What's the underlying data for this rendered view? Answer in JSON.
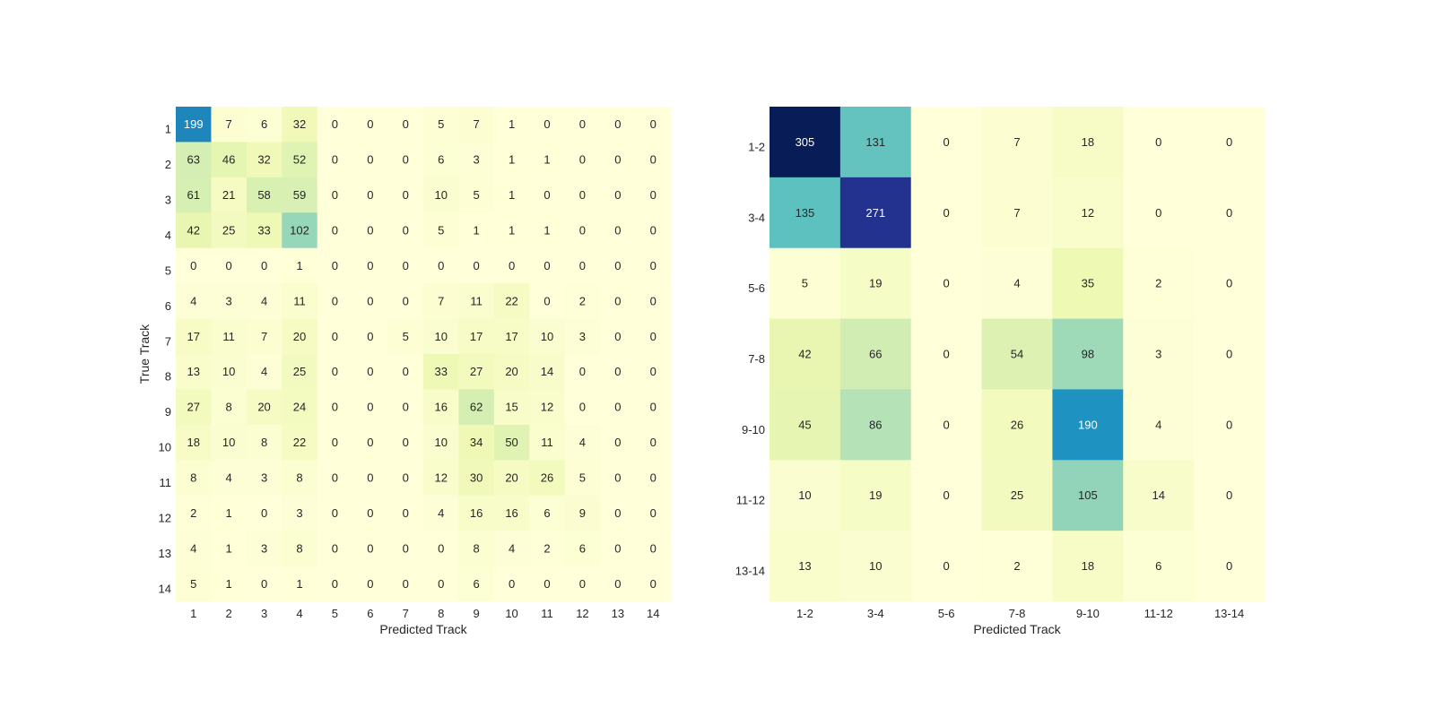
{
  "chart_data": [
    {
      "type": "heatmap",
      "title": "",
      "xlabel": "Predicted Track",
      "ylabel": "True Track",
      "colormap": "YlGnBu",
      "color_range": [
        0,
        305
      ],
      "x_categories": [
        "1",
        "2",
        "3",
        "4",
        "5",
        "6",
        "7",
        "8",
        "9",
        "10",
        "11",
        "12",
        "13",
        "14"
      ],
      "y_categories": [
        "1",
        "2",
        "3",
        "4",
        "5",
        "6",
        "7",
        "8",
        "9",
        "10",
        "11",
        "12",
        "13",
        "14"
      ],
      "values": [
        [
          199,
          7,
          6,
          32,
          0,
          0,
          0,
          5,
          7,
          1,
          0,
          0,
          0,
          0
        ],
        [
          63,
          46,
          32,
          52,
          0,
          0,
          0,
          6,
          3,
          1,
          1,
          0,
          0,
          0
        ],
        [
          61,
          21,
          58,
          59,
          0,
          0,
          0,
          10,
          5,
          1,
          0,
          0,
          0,
          0
        ],
        [
          42,
          25,
          33,
          102,
          0,
          0,
          0,
          5,
          1,
          1,
          1,
          0,
          0,
          0
        ],
        [
          0,
          0,
          0,
          1,
          0,
          0,
          0,
          0,
          0,
          0,
          0,
          0,
          0,
          0
        ],
        [
          4,
          3,
          4,
          11,
          0,
          0,
          0,
          7,
          11,
          22,
          0,
          2,
          0,
          0
        ],
        [
          17,
          11,
          7,
          20,
          0,
          0,
          5,
          10,
          17,
          17,
          10,
          3,
          0,
          0
        ],
        [
          13,
          10,
          4,
          25,
          0,
          0,
          0,
          33,
          27,
          20,
          14,
          0,
          0,
          0
        ],
        [
          27,
          8,
          20,
          24,
          0,
          0,
          0,
          16,
          62,
          15,
          12,
          0,
          0,
          0
        ],
        [
          18,
          10,
          8,
          22,
          0,
          0,
          0,
          10,
          34,
          50,
          11,
          4,
          0,
          0
        ],
        [
          8,
          4,
          3,
          8,
          0,
          0,
          0,
          12,
          30,
          20,
          26,
          5,
          0,
          0
        ],
        [
          2,
          1,
          0,
          3,
          0,
          0,
          0,
          4,
          16,
          16,
          6,
          9,
          0,
          0
        ],
        [
          4,
          1,
          3,
          8,
          0,
          0,
          0,
          0,
          8,
          4,
          2,
          6,
          0,
          0
        ],
        [
          5,
          1,
          0,
          1,
          0,
          0,
          0,
          0,
          6,
          0,
          0,
          0,
          0,
          0
        ]
      ]
    },
    {
      "type": "heatmap",
      "title": "",
      "xlabel": "Predicted Track",
      "ylabel": "",
      "colormap": "YlGnBu",
      "color_range": [
        0,
        305
      ],
      "x_categories": [
        "1-2",
        "3-4",
        "5-6",
        "7-8",
        "9-10",
        "11-12",
        "13-14"
      ],
      "y_categories": [
        "1-2",
        "3-4",
        "5-6",
        "7-8",
        "9-10",
        "11-12",
        "13-14"
      ],
      "values": [
        [
          305,
          131,
          0,
          7,
          18,
          0,
          0
        ],
        [
          135,
          271,
          0,
          7,
          12,
          0,
          0
        ],
        [
          5,
          19,
          0,
          4,
          35,
          2,
          0
        ],
        [
          42,
          66,
          0,
          54,
          98,
          3,
          0
        ],
        [
          45,
          86,
          0,
          26,
          190,
          4,
          0
        ],
        [
          10,
          19,
          0,
          25,
          105,
          14,
          0
        ],
        [
          13,
          10,
          0,
          2,
          18,
          6,
          0
        ]
      ]
    }
  ]
}
